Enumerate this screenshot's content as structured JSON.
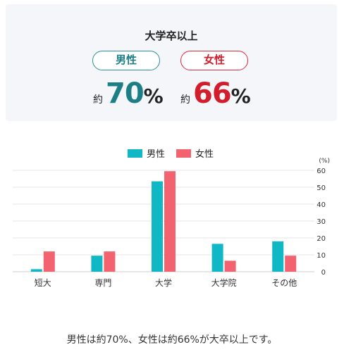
{
  "summary": {
    "title": "大学卒以上",
    "male": {
      "label": "男性",
      "approx": "約",
      "value": "70",
      "unit": "%"
    },
    "female": {
      "label": "女性",
      "approx": "約",
      "value": "66",
      "unit": "%"
    }
  },
  "colors": {
    "male": "#10b8c6",
    "female": "#f2636f",
    "male_text": "#1d7f86",
    "female_text": "#d21d2c",
    "card_bg": "#f5f6fa"
  },
  "chart_data": {
    "type": "bar",
    "categories": [
      "短大",
      "専門",
      "大学",
      "大学院",
      "その他"
    ],
    "series": [
      {
        "name": "男性",
        "values": [
          1.5,
          9.5,
          53.5,
          16.5,
          18
        ]
      },
      {
        "name": "女性",
        "values": [
          12,
          12,
          59.5,
          6.5,
          9.5
        ]
      }
    ],
    "ylim": [
      0,
      60
    ],
    "yticks": [
      0,
      10,
      20,
      30,
      40,
      50,
      60
    ],
    "ylabel": "(%)",
    "grid": true,
    "legend_position": "top-center"
  },
  "caption": "男性は約70%、女性は約66%が大卒以上です。"
}
